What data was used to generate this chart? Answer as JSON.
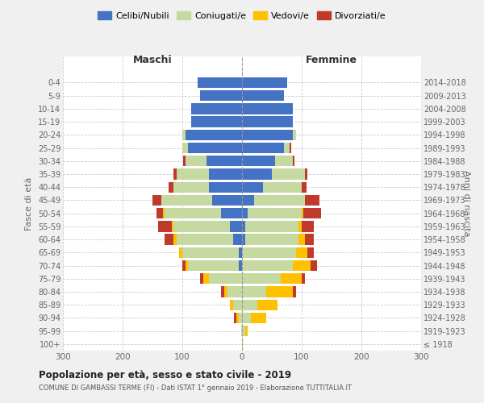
{
  "age_groups": [
    "100+",
    "95-99",
    "90-94",
    "85-89",
    "80-84",
    "75-79",
    "70-74",
    "65-69",
    "60-64",
    "55-59",
    "50-54",
    "45-49",
    "40-44",
    "35-39",
    "30-34",
    "25-29",
    "20-24",
    "15-19",
    "10-14",
    "5-9",
    "0-4"
  ],
  "birth_years": [
    "≤ 1918",
    "1919-1923",
    "1924-1928",
    "1929-1933",
    "1934-1938",
    "1939-1943",
    "1944-1948",
    "1949-1953",
    "1954-1958",
    "1959-1963",
    "1964-1968",
    "1969-1973",
    "1974-1978",
    "1979-1983",
    "1984-1988",
    "1989-1993",
    "1994-1998",
    "1999-2003",
    "2004-2008",
    "2009-2013",
    "2014-2018"
  ],
  "males": {
    "celibi": [
      0,
      0,
      0,
      0,
      0,
      0,
      5,
      5,
      15,
      20,
      35,
      50,
      55,
      55,
      60,
      90,
      95,
      85,
      85,
      70,
      75
    ],
    "coniugati": [
      0,
      2,
      5,
      15,
      25,
      55,
      85,
      95,
      95,
      95,
      95,
      85,
      60,
      55,
      35,
      10,
      5,
      0,
      0,
      0,
      0
    ],
    "vedovi": [
      0,
      0,
      5,
      5,
      5,
      10,
      5,
      5,
      5,
      3,
      3,
      0,
      0,
      0,
      0,
      0,
      0,
      0,
      0,
      0,
      0
    ],
    "divorziati": [
      0,
      0,
      3,
      0,
      5,
      5,
      5,
      0,
      15,
      22,
      10,
      15,
      8,
      5,
      3,
      0,
      0,
      0,
      0,
      0,
      0
    ]
  },
  "females": {
    "nubili": [
      0,
      0,
      0,
      0,
      0,
      0,
      0,
      0,
      5,
      5,
      10,
      20,
      35,
      50,
      55,
      70,
      85,
      85,
      85,
      70,
      75
    ],
    "coniugate": [
      0,
      5,
      15,
      25,
      40,
      65,
      85,
      90,
      90,
      90,
      90,
      85,
      65,
      55,
      30,
      10,
      5,
      0,
      0,
      0,
      0
    ],
    "vedove": [
      1,
      5,
      25,
      35,
      45,
      35,
      30,
      20,
      10,
      5,
      3,
      0,
      0,
      0,
      0,
      0,
      0,
      0,
      0,
      0,
      0
    ],
    "divorziate": [
      0,
      0,
      0,
      0,
      5,
      5,
      10,
      10,
      15,
      20,
      30,
      25,
      8,
      5,
      3,
      2,
      0,
      0,
      0,
      0,
      0
    ]
  },
  "colors": {
    "celibi": "#4472c4",
    "coniugati": "#c5d9a0",
    "vedovi": "#ffc000",
    "divorziati": "#c0392b"
  },
  "title": "Popolazione per età, sesso e stato civile - 2019",
  "subtitle": "COMUNE DI GAMBASSI TERME (FI) - Dati ISTAT 1° gennaio 2019 - Elaborazione TUTTITALIA.IT",
  "xlabel_maschi": "Maschi",
  "xlabel_femmine": "Femmine",
  "ylabel_left": "Fasce di età",
  "ylabel_right": "Anni di nascita",
  "xlim": 300,
  "legend_labels": [
    "Celibi/Nubili",
    "Coniugati/e",
    "Vedovi/e",
    "Divorziati/e"
  ],
  "background_color": "#f0f0f0",
  "plot_background": "#ffffff"
}
